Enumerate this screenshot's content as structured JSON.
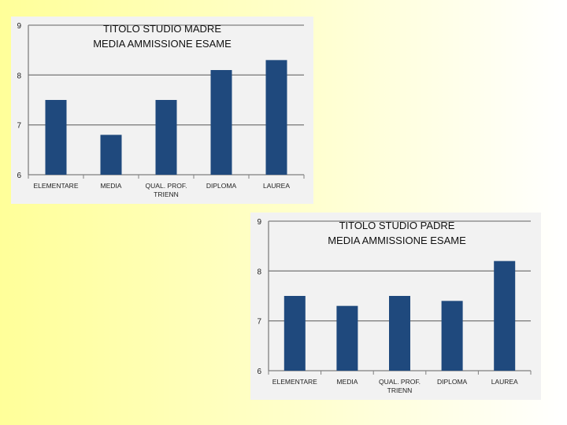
{
  "colors": {
    "bar": "#1f497d",
    "axis": "#808080",
    "panel": "#f2f2f2"
  },
  "chart_data": [
    {
      "type": "bar",
      "title": "TITOLO STUDIO MADRE",
      "subtitle": "MEDIA AMMISSIONE ESAME",
      "categories": [
        "ELEMENTARE",
        "MEDIA",
        "QUAL. PROF. TRIENN",
        "DIPLOMA",
        "LAUREA"
      ],
      "category_lines": [
        [
          "ELEMENTARE"
        ],
        [
          "MEDIA"
        ],
        [
          "QUAL. PROF.",
          "TRIENN"
        ],
        [
          "DIPLOMA"
        ],
        [
          "LAUREA"
        ]
      ],
      "values": [
        7.5,
        6.8,
        7.5,
        8.1,
        8.3
      ],
      "ylim": [
        6,
        9
      ],
      "yticks": [
        6,
        7,
        8,
        9
      ],
      "grid": true,
      "legend": "none"
    },
    {
      "type": "bar",
      "title": "TITOLO STUDIO PADRE",
      "subtitle": "MEDIA AMMISSIONE ESAME",
      "categories": [
        "ELEMENTARE",
        "MEDIA",
        "QUAL. PROF. TRIENN",
        "DIPLOMA",
        "LAUREA"
      ],
      "category_lines": [
        [
          "ELEMENTARE"
        ],
        [
          "MEDIA"
        ],
        [
          "QUAL. PROF.",
          "TRIENN"
        ],
        [
          "DIPLOMA"
        ],
        [
          "LAUREA"
        ]
      ],
      "values": [
        7.5,
        7.3,
        7.5,
        7.4,
        8.2
      ],
      "ylim": [
        6,
        9
      ],
      "yticks": [
        6,
        7,
        8,
        9
      ],
      "grid": true,
      "legend": "none"
    }
  ]
}
